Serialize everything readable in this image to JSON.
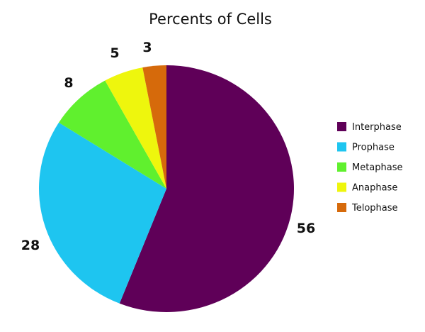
{
  "chart_data": {
    "type": "pie",
    "title": "Percents of Cells",
    "slices": [
      {
        "label": "Interphase",
        "value": 56,
        "color": "#5f0058"
      },
      {
        "label": "Prophase",
        "value": 28,
        "color": "#1ec5f0"
      },
      {
        "label": "Metaphase",
        "value": 8,
        "color": "#60f02e"
      },
      {
        "label": "Anaphase",
        "value": 5,
        "color": "#eef60d"
      },
      {
        "label": "Telophase",
        "value": 3,
        "color": "#d66a0b"
      }
    ],
    "data_labels": [
      "56",
      "28",
      "8",
      "5",
      "3"
    ],
    "legend_position": "right",
    "start_angle": "top",
    "direction": "clockwise"
  }
}
